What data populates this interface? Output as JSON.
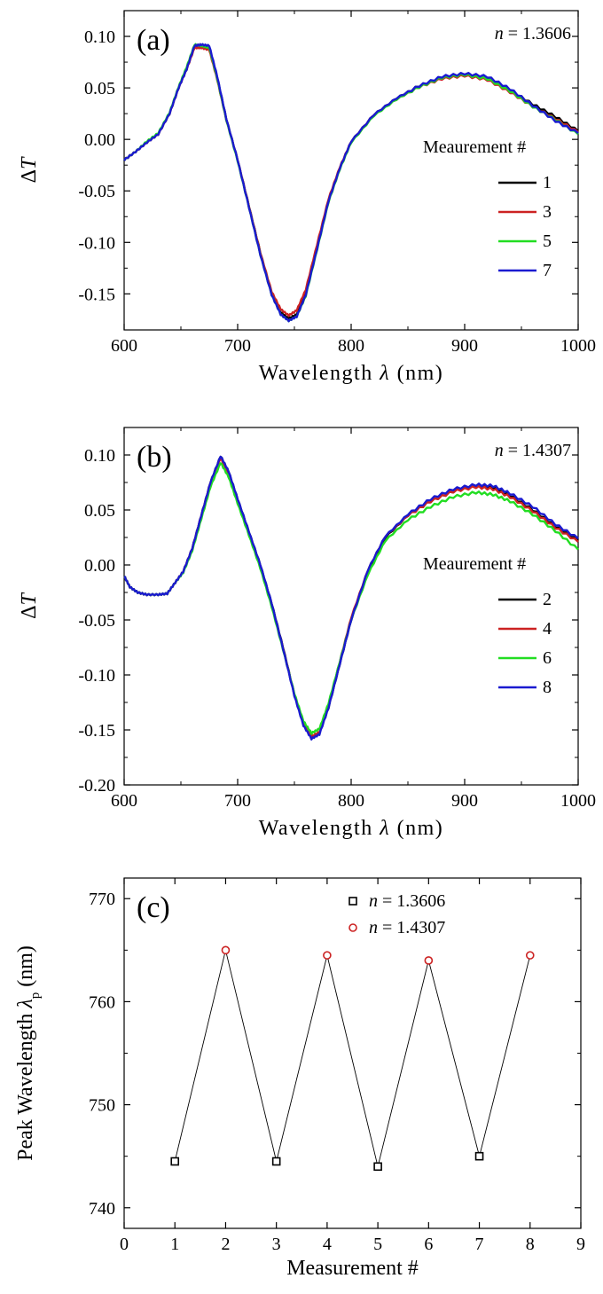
{
  "chart_data": [
    {
      "type": "line",
      "panel_label": "(a)",
      "annotation": "n = 1.3606",
      "annotation_var": "n",
      "annotation_val": " = 1.3606",
      "xlabel": "Wavelength λ (nm)",
      "xlabel_main": "Wavelength ",
      "xlabel_var": "λ",
      "xlabel_unit": " (nm)",
      "ylabel": "ΔT",
      "ylabel_main": "Δ",
      "ylabel_var": "T",
      "xlim": [
        600,
        1000
      ],
      "ylim": [
        -0.185,
        0.125
      ],
      "xticks": [
        600,
        700,
        800,
        900,
        1000
      ],
      "xtick_labels": [
        "600",
        "700",
        "800",
        "900",
        "1000"
      ],
      "yticks": [
        0.1,
        0.05,
        0.0,
        -0.05,
        -0.1,
        -0.15
      ],
      "ytick_labels": [
        "0.10",
        "0.05",
        "0.00",
        "-0.05",
        "-0.10",
        "-0.15"
      ],
      "legend_title": "Meaurement #",
      "legend_position": "right",
      "x": [
        600,
        610,
        620,
        630,
        640,
        648,
        655,
        662,
        668,
        675,
        682,
        690,
        700,
        710,
        720,
        730,
        738,
        745,
        752,
        760,
        770,
        780,
        790,
        800,
        820,
        840,
        860,
        880,
        900,
        920,
        940,
        960,
        980,
        1000
      ],
      "series": [
        {
          "name": "1",
          "color": "#000000",
          "values": [
            -0.02,
            -0.012,
            -0.003,
            0.005,
            0.025,
            0.05,
            0.068,
            0.09,
            0.092,
            0.089,
            0.06,
            0.02,
            -0.02,
            -0.065,
            -0.11,
            -0.15,
            -0.168,
            -0.174,
            -0.17,
            -0.15,
            -0.105,
            -0.06,
            -0.028,
            -0.002,
            0.024,
            0.04,
            0.052,
            0.06,
            0.063,
            0.06,
            0.048,
            0.034,
            0.022,
            0.008
          ]
        },
        {
          "name": "3",
          "color": "#cc2222",
          "values": [
            -0.02,
            -0.012,
            -0.003,
            0.005,
            0.025,
            0.05,
            0.068,
            0.089,
            0.089,
            0.087,
            0.058,
            0.019,
            -0.02,
            -0.065,
            -0.11,
            -0.148,
            -0.165,
            -0.171,
            -0.166,
            -0.146,
            -0.102,
            -0.058,
            -0.027,
            -0.002,
            0.024,
            0.039,
            0.051,
            0.059,
            0.062,
            0.058,
            0.046,
            0.032,
            0.02,
            0.007
          ]
        },
        {
          "name": "5",
          "color": "#22dd22",
          "values": [
            -0.02,
            -0.012,
            -0.002,
            0.006,
            0.026,
            0.051,
            0.07,
            0.092,
            0.091,
            0.089,
            0.059,
            0.019,
            -0.021,
            -0.066,
            -0.112,
            -0.151,
            -0.17,
            -0.176,
            -0.172,
            -0.152,
            -0.107,
            -0.061,
            -0.029,
            -0.003,
            0.023,
            0.039,
            0.051,
            0.06,
            0.063,
            0.059,
            0.047,
            0.032,
            0.019,
            0.005
          ]
        },
        {
          "name": "7",
          "color": "#1a1ad0",
          "values": [
            -0.02,
            -0.012,
            -0.003,
            0.005,
            0.025,
            0.05,
            0.068,
            0.091,
            0.092,
            0.091,
            0.061,
            0.02,
            -0.02,
            -0.066,
            -0.112,
            -0.151,
            -0.17,
            -0.176,
            -0.172,
            -0.151,
            -0.106,
            -0.06,
            -0.028,
            -0.002,
            0.024,
            0.04,
            0.052,
            0.061,
            0.064,
            0.061,
            0.049,
            0.033,
            0.018,
            0.006
          ]
        }
      ]
    },
    {
      "type": "line",
      "panel_label": "(b)",
      "annotation": "n = 1.4307",
      "annotation_var": "n",
      "annotation_val": " = 1.4307",
      "xlabel": "Wavelength λ (nm)",
      "xlabel_main": "Wavelength ",
      "xlabel_var": "λ",
      "xlabel_unit": " (nm)",
      "ylabel": "ΔT",
      "ylabel_main": "Δ",
      "ylabel_var": "T",
      "xlim": [
        600,
        1000
      ],
      "ylim": [
        -0.2,
        0.125
      ],
      "xticks": [
        600,
        700,
        800,
        900,
        1000
      ],
      "xtick_labels": [
        "600",
        "700",
        "800",
        "900",
        "1000"
      ],
      "yticks": [
        0.1,
        0.05,
        0.0,
        -0.05,
        -0.1,
        -0.15,
        -0.2
      ],
      "ytick_labels": [
        "0.10",
        "0.05",
        "0.00",
        "-0.05",
        "-0.10",
        "-0.15",
        "-0.20"
      ],
      "legend_title": "Meaurement #",
      "legend_position": "right",
      "x": [
        600,
        605,
        612,
        620,
        630,
        638,
        645,
        652,
        660,
        668,
        676,
        685,
        692,
        700,
        710,
        720,
        730,
        740,
        750,
        758,
        765,
        772,
        780,
        790,
        800,
        815,
        830,
        850,
        870,
        890,
        910,
        925,
        940,
        960,
        980,
        1000
      ],
      "series": [
        {
          "name": "2",
          "color": "#000000",
          "values": [
            -0.01,
            -0.02,
            -0.025,
            -0.027,
            -0.027,
            -0.026,
            -0.016,
            -0.006,
            0.015,
            0.045,
            0.075,
            0.099,
            0.085,
            0.06,
            0.03,
            0.0,
            -0.035,
            -0.075,
            -0.118,
            -0.145,
            -0.157,
            -0.153,
            -0.13,
            -0.09,
            -0.05,
            -0.005,
            0.025,
            0.045,
            0.058,
            0.067,
            0.072,
            0.07,
            0.063,
            0.05,
            0.035,
            0.022
          ]
        },
        {
          "name": "4",
          "color": "#cc2222",
          "values": [
            -0.01,
            -0.02,
            -0.025,
            -0.027,
            -0.027,
            -0.026,
            -0.016,
            -0.006,
            0.015,
            0.045,
            0.075,
            0.097,
            0.083,
            0.059,
            0.029,
            -0.001,
            -0.036,
            -0.076,
            -0.118,
            -0.144,
            -0.156,
            -0.152,
            -0.128,
            -0.088,
            -0.048,
            -0.004,
            0.026,
            0.045,
            0.058,
            0.067,
            0.071,
            0.069,
            0.062,
            0.049,
            0.034,
            0.021
          ]
        },
        {
          "name": "6",
          "color": "#22dd22",
          "values": [
            -0.01,
            -0.02,
            -0.025,
            -0.027,
            -0.027,
            -0.026,
            -0.016,
            -0.007,
            0.013,
            0.042,
            0.071,
            0.093,
            0.08,
            0.056,
            0.027,
            -0.003,
            -0.038,
            -0.077,
            -0.117,
            -0.142,
            -0.153,
            -0.149,
            -0.126,
            -0.088,
            -0.05,
            -0.008,
            0.022,
            0.041,
            0.053,
            0.062,
            0.066,
            0.064,
            0.058,
            0.046,
            0.031,
            0.014
          ]
        },
        {
          "name": "8",
          "color": "#1a1ad0",
          "values": [
            -0.01,
            -0.02,
            -0.025,
            -0.027,
            -0.027,
            -0.026,
            -0.016,
            -0.006,
            0.015,
            0.045,
            0.075,
            0.099,
            0.085,
            0.06,
            0.03,
            0.0,
            -0.035,
            -0.076,
            -0.119,
            -0.146,
            -0.158,
            -0.154,
            -0.13,
            -0.09,
            -0.05,
            -0.004,
            0.026,
            0.046,
            0.06,
            0.069,
            0.073,
            0.072,
            0.065,
            0.053,
            0.037,
            0.024
          ]
        }
      ]
    },
    {
      "type": "scatter",
      "panel_label": "(c)",
      "xlabel": "Measurement #",
      "ylabel": "Peak Wavelength λp (nm)",
      "ylabel_main": "Peak Wavelength ",
      "ylabel_var": "λ",
      "ylabel_sub": "p",
      "ylabel_unit": " (nm)",
      "xlim": [
        0,
        9
      ],
      "ylim": [
        738,
        772
      ],
      "xticks": [
        0,
        1,
        2,
        3,
        4,
        5,
        6,
        7,
        8,
        9
      ],
      "xtick_labels": [
        "0",
        "1",
        "2",
        "3",
        "4",
        "5",
        "6",
        "7",
        "8",
        "9"
      ],
      "yticks": [
        740,
        750,
        760,
        770
      ],
      "ytick_labels": [
        "740",
        "750",
        "760",
        "770"
      ],
      "line_x": [
        1,
        2,
        3,
        4,
        5,
        6,
        7,
        8
      ],
      "line_y": [
        744.5,
        765.0,
        744.5,
        764.5,
        744.0,
        764.0,
        745.0,
        764.5
      ],
      "legend_position": "top-right",
      "series": [
        {
          "name": "n = 1.3606",
          "name_var": "n",
          "name_val": " = 1.3606",
          "marker": "square",
          "color": "#000000",
          "x": [
            1,
            3,
            5,
            7
          ],
          "y": [
            744.5,
            744.5,
            744.0,
            745.0
          ]
        },
        {
          "name": "n = 1.4307",
          "name_var": "n",
          "name_val": " = 1.4307",
          "marker": "circle",
          "color": "#cc2222",
          "x": [
            2,
            4,
            6,
            8
          ],
          "y": [
            765.0,
            764.5,
            764.0,
            764.5
          ]
        }
      ]
    }
  ]
}
